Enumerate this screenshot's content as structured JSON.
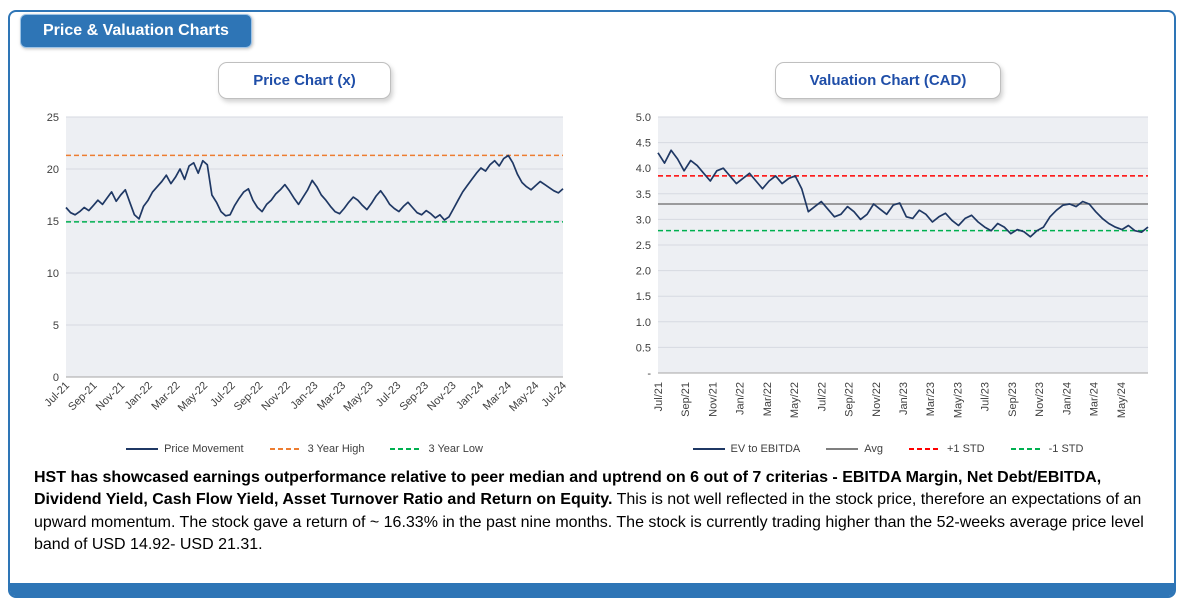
{
  "page": {
    "header_tab": "Price & Valuation Charts"
  },
  "theme": {
    "accent_blue": "#2E75B6",
    "title_blue": "#1F4EA8",
    "navy_series": "#1F3864",
    "orange_high": "#ED7D31",
    "green_low": "#00B050",
    "red_std": "#FF0000",
    "gray_avg": "#7F7F7F"
  },
  "chart_data": [
    {
      "type": "line",
      "title": "Price Chart (x)",
      "ylim": [
        0,
        25
      ],
      "yticks": [
        0,
        5,
        10,
        15,
        20,
        25
      ],
      "ytick_labels": [
        "0",
        "5",
        "10",
        "15",
        "20",
        "25"
      ],
      "x_tick_labels": [
        "Jul-21",
        "Sep-21",
        "Nov-21",
        "Jan-22",
        "Mar-22",
        "May-22",
        "Jul-22",
        "Sep-22",
        "Nov-22",
        "Jan-23",
        "Mar-23",
        "May-23",
        "Jul-23",
        "Sep-23",
        "Nov-23",
        "Jan-24",
        "Mar-24",
        "May-24",
        "Jul-24"
      ],
      "months_span": 36,
      "label_step_months": 2,
      "grid": true,
      "legend_position": "bottom",
      "series": [
        {
          "name": "Price Movement",
          "color": "#1F3864",
          "values": [
            16.3,
            15.8,
            15.6,
            15.9,
            16.3,
            16.0,
            16.5,
            17.0,
            16.6,
            17.2,
            17.8,
            16.9,
            17.5,
            18.0,
            16.8,
            15.6,
            15.2,
            16.4,
            17.0,
            17.8,
            18.3,
            18.8,
            19.4,
            18.6,
            19.2,
            20.0,
            19.0,
            20.3,
            20.6,
            19.6,
            20.8,
            20.4,
            17.5,
            16.8,
            15.9,
            15.5,
            15.6,
            16.5,
            17.2,
            17.8,
            18.1,
            17.0,
            16.3,
            15.9,
            16.6,
            17.0,
            17.6,
            18.0,
            18.5,
            17.9,
            17.2,
            16.6,
            17.3,
            18.0,
            18.9,
            18.3,
            17.5,
            17.0,
            16.4,
            15.9,
            15.7,
            16.2,
            16.8,
            17.3,
            17.0,
            16.5,
            16.1,
            16.7,
            17.4,
            17.9,
            17.3,
            16.6,
            16.2,
            15.9,
            16.4,
            16.8,
            16.3,
            15.8,
            15.6,
            16.0,
            15.7,
            15.3,
            15.6,
            15.1,
            15.4,
            16.2,
            17.0,
            17.8,
            18.4,
            19.0,
            19.6,
            20.1,
            19.8,
            20.4,
            20.8,
            20.3,
            21.0,
            21.3,
            20.6,
            19.5,
            18.7,
            18.3,
            18.0,
            18.4,
            18.8,
            18.5,
            18.2,
            17.9,
            17.7,
            18.1
          ]
        }
      ],
      "reflines": [
        {
          "name": "3 Year High",
          "value": 21.31,
          "color": "#ED7D31",
          "dash": true
        },
        {
          "name": "3 Year Low",
          "value": 14.92,
          "color": "#00B050",
          "dash": true
        }
      ],
      "legend": [
        {
          "label": "Price Movement",
          "color": "#1F3864",
          "dash": false
        },
        {
          "label": "3 Year High",
          "color": "#ED7D31",
          "dash": true
        },
        {
          "label": "3 Year Low",
          "color": "#00B050",
          "dash": true
        }
      ]
    },
    {
      "type": "line",
      "title": "Valuation Chart (CAD)",
      "ylim": [
        0,
        5
      ],
      "yticks": [
        0,
        0.5,
        1,
        1.5,
        2,
        2.5,
        3,
        3.5,
        4,
        4.5,
        5
      ],
      "ytick_labels": [
        "-",
        "0.5",
        "1.0",
        "1.5",
        "2.0",
        "2.5",
        "3.0",
        "3.5",
        "4.0",
        "4.5",
        "5.0"
      ],
      "x_tick_labels": [
        "Jul/21",
        "Sep/21",
        "Nov/21",
        "Jan/22",
        "Mar/22",
        "May/22",
        "Jul/22",
        "Sep/22",
        "Nov/22",
        "Jan/23",
        "Mar/23",
        "May/23",
        "Jul/23",
        "Sep/23",
        "Nov/23",
        "Jan/24",
        "Mar/24",
        "May/24"
      ],
      "months_span": 36,
      "label_step_months": 2,
      "grid": true,
      "legend_position": "bottom",
      "series": [
        {
          "name": "EV to EBITDA",
          "color": "#1F3864",
          "values": [
            4.3,
            4.1,
            4.35,
            4.18,
            3.95,
            4.15,
            4.05,
            3.9,
            3.75,
            3.95,
            4.0,
            3.85,
            3.7,
            3.8,
            3.9,
            3.75,
            3.6,
            3.75,
            3.85,
            3.7,
            3.8,
            3.85,
            3.6,
            3.15,
            3.25,
            3.35,
            3.2,
            3.05,
            3.1,
            3.25,
            3.15,
            3.0,
            3.1,
            3.3,
            3.2,
            3.1,
            3.28,
            3.32,
            3.05,
            3.02,
            3.18,
            3.1,
            2.95,
            3.05,
            3.12,
            2.98,
            2.88,
            3.02,
            3.08,
            2.95,
            2.85,
            2.78,
            2.92,
            2.85,
            2.72,
            2.8,
            2.76,
            2.66,
            2.78,
            2.85,
            3.05,
            3.18,
            3.28,
            3.3,
            3.25,
            3.35,
            3.3,
            3.15,
            3.02,
            2.92,
            2.85,
            2.8,
            2.88,
            2.78,
            2.75,
            2.85
          ]
        }
      ],
      "reflines": [
        {
          "name": "Avg",
          "value": 3.3,
          "color": "#7F7F7F",
          "dash": false
        },
        {
          "name": "+1 STD",
          "value": 3.85,
          "color": "#FF0000",
          "dash": true
        },
        {
          "name": "-1 STD",
          "value": 2.78,
          "color": "#00B050",
          "dash": true
        }
      ],
      "legend": [
        {
          "label": "EV to EBITDA",
          "color": "#1F3864",
          "dash": false
        },
        {
          "label": "Avg",
          "color": "#7F7F7F",
          "dash": false
        },
        {
          "label": "+1 STD",
          "color": "#FF0000",
          "dash": true
        },
        {
          "label": "-1 STD",
          "color": "#00B050",
          "dash": true
        }
      ]
    }
  ],
  "commentary": {
    "bold": "HST has showcased earnings outperformance relative to peer median and uptrend on 6 out of 7 criterias - EBITDA Margin, Net Debt/EBITDA, Dividend Yield, Cash Flow Yield, Asset Turnover Ratio and Return on Equity.",
    "regular": " This is not well reflected in the stock price, therefore an expectations of an upward momentum. The stock gave a  return of ~ 16.33% in the past nine months. The stock is currently trading higher than the 52-weeks average price level band of USD 14.92- USD 21.31."
  }
}
